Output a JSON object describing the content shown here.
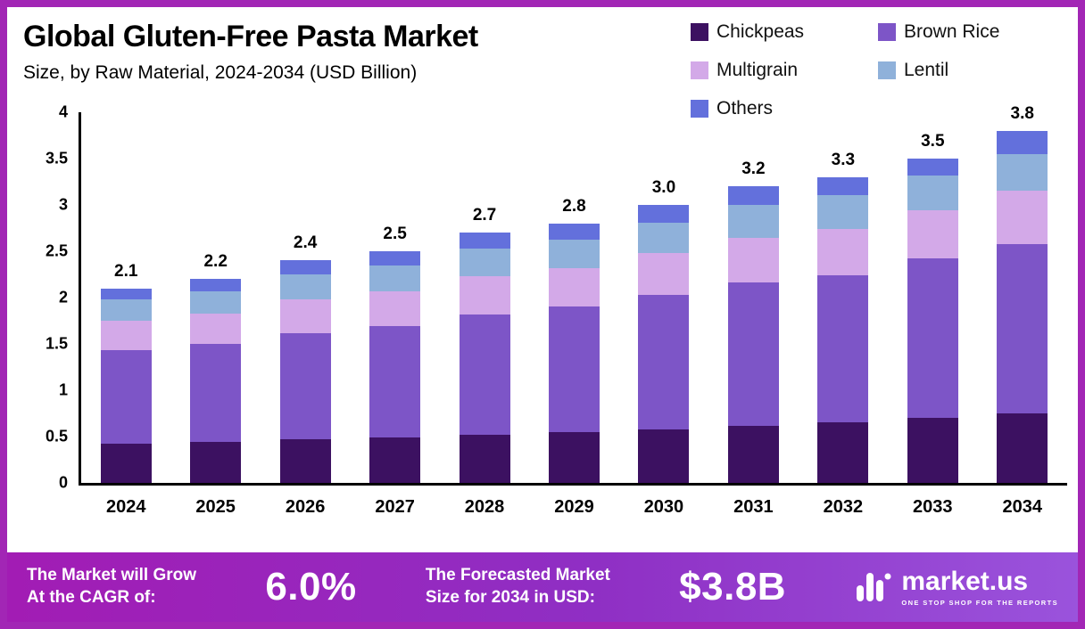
{
  "frame": {
    "border_color": "#A226B5"
  },
  "header": {
    "title": "Global Gluten-Free Pasta Market",
    "subtitle": "Size, by Raw Material, 2024-2034 (USD Billion)"
  },
  "chart_data": {
    "type": "bar",
    "stacked": true,
    "title": "Global Gluten-Free Pasta Market Size, by Raw Material, 2024-2034 (USD Billion)",
    "categories": [
      "2024",
      "2025",
      "2026",
      "2027",
      "2028",
      "2029",
      "2030",
      "2031",
      "2032",
      "2033",
      "2034"
    ],
    "totals": [
      2.1,
      2.2,
      2.4,
      2.5,
      2.7,
      2.8,
      3.0,
      3.2,
      3.3,
      3.5,
      3.8
    ],
    "series": [
      {
        "name": "Chickpeas",
        "color": "#3C1161",
        "values": [
          0.42,
          0.44,
          0.47,
          0.49,
          0.52,
          0.55,
          0.58,
          0.62,
          0.65,
          0.7,
          0.75
        ]
      },
      {
        "name": "Brown Rice",
        "color": "#7D55C7",
        "values": [
          1.01,
          1.06,
          1.15,
          1.2,
          1.3,
          1.35,
          1.45,
          1.54,
          1.59,
          1.72,
          1.83
        ]
      },
      {
        "name": "Multigrain",
        "color": "#D3A9E8",
        "values": [
          0.32,
          0.33,
          0.36,
          0.38,
          0.41,
          0.42,
          0.45,
          0.48,
          0.5,
          0.52,
          0.57
        ]
      },
      {
        "name": "Lentil",
        "color": "#8FB1DA",
        "values": [
          0.23,
          0.24,
          0.27,
          0.28,
          0.3,
          0.31,
          0.33,
          0.36,
          0.37,
          0.38,
          0.4
        ]
      },
      {
        "name": "Others",
        "color": "#6370DC",
        "values": [
          0.12,
          0.13,
          0.15,
          0.15,
          0.17,
          0.17,
          0.19,
          0.2,
          0.19,
          0.18,
          0.25
        ]
      }
    ],
    "ylim": [
      0,
      4
    ],
    "yticks": [
      "0",
      "0.5",
      "1",
      "1.5",
      "2",
      "2.5",
      "3",
      "3.5",
      "4"
    ],
    "grid": false,
    "legend_position": "top-right"
  },
  "footer": {
    "bg_from": "#A21CB4",
    "bg_mid": "#8F2FC4",
    "bg_to": "#9A53DC",
    "cagr_label_line1": "The Market will Grow",
    "cagr_label_line2": "At the CAGR of:",
    "cagr_value": "6.0%",
    "forecast_label_line1": "The Forecasted Market",
    "forecast_label_line2": "Size for 2034 in USD:",
    "forecast_value": "$3.8B",
    "brand": {
      "name": "market.us",
      "tagline": "ONE STOP SHOP FOR THE REPORTS"
    }
  }
}
